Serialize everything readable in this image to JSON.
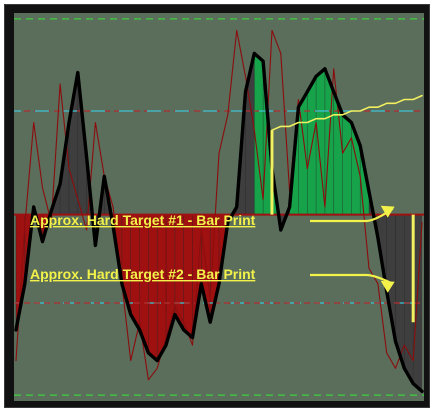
{
  "chart_data": {
    "type": "area",
    "title": "",
    "xlabel": "",
    "ylabel": "",
    "grid": false,
    "legend": "none",
    "x_count": 47,
    "ylim": [
      0,
      100
    ],
    "zero_level": 48,
    "levels": {
      "top_green": 99,
      "upper_red": 75,
      "upper_cyan": 75,
      "lower_cyan": 25,
      "lower_red": 25,
      "bottom_green": 1
    },
    "series": [
      {
        "name": "",
        "style": "thick-black-line",
        "values": [
          18,
          30,
          50,
          41,
          49,
          56,
          72,
          85,
          63,
          40,
          58,
          45,
          30,
          22,
          18,
          12,
          10,
          14,
          22,
          18,
          16,
          30,
          20,
          30,
          46,
          50,
          80,
          90,
          88,
          60,
          44,
          50,
          76,
          80,
          84,
          86,
          80,
          74,
          72,
          66,
          54,
          42,
          28,
          15,
          8,
          4,
          2
        ]
      },
      {
        "name": "",
        "style": "thin-red-line",
        "values": [
          10,
          45,
          72,
          55,
          46,
          82,
          60,
          52,
          44,
          72,
          58,
          50,
          30,
          10,
          20,
          5,
          8,
          16,
          24,
          20,
          14,
          44,
          26,
          64,
          74,
          96,
          84,
          70,
          52,
          96,
          90,
          54,
          78,
          60,
          72,
          50,
          86,
          64,
          68,
          58,
          34,
          30,
          12,
          8,
          14,
          10,
          46
        ]
      },
      {
        "name": "",
        "style": "yellow-signal-line",
        "values": [
          null,
          null,
          null,
          null,
          null,
          null,
          null,
          null,
          null,
          null,
          null,
          null,
          null,
          null,
          null,
          null,
          null,
          null,
          null,
          null,
          null,
          null,
          null,
          null,
          null,
          null,
          null,
          null,
          null,
          70,
          71,
          71,
          72,
          72,
          73,
          73,
          74,
          74,
          75,
          75,
          76,
          76,
          77,
          77,
          78,
          78,
          79
        ]
      }
    ],
    "fill_colors": {
      "above_zero": "#16a34a",
      "below_zero": "#9f1111",
      "neutral": "#3e3e3e"
    },
    "line_colors": {
      "main": "#000000",
      "oscillator": "#8b0d0d",
      "signal": "#f0f060",
      "level_red": "#b03030",
      "level_cyan": "#38c8d8",
      "level_green": "#3cd23c"
    },
    "annotations": [
      {
        "text": "Approx. Hard Target #1 - Bar Print",
        "color": "#f2f24a"
      },
      {
        "text": "Approx. Hard Target #2 - Bar Print",
        "color": "#f2f24a"
      }
    ]
  }
}
